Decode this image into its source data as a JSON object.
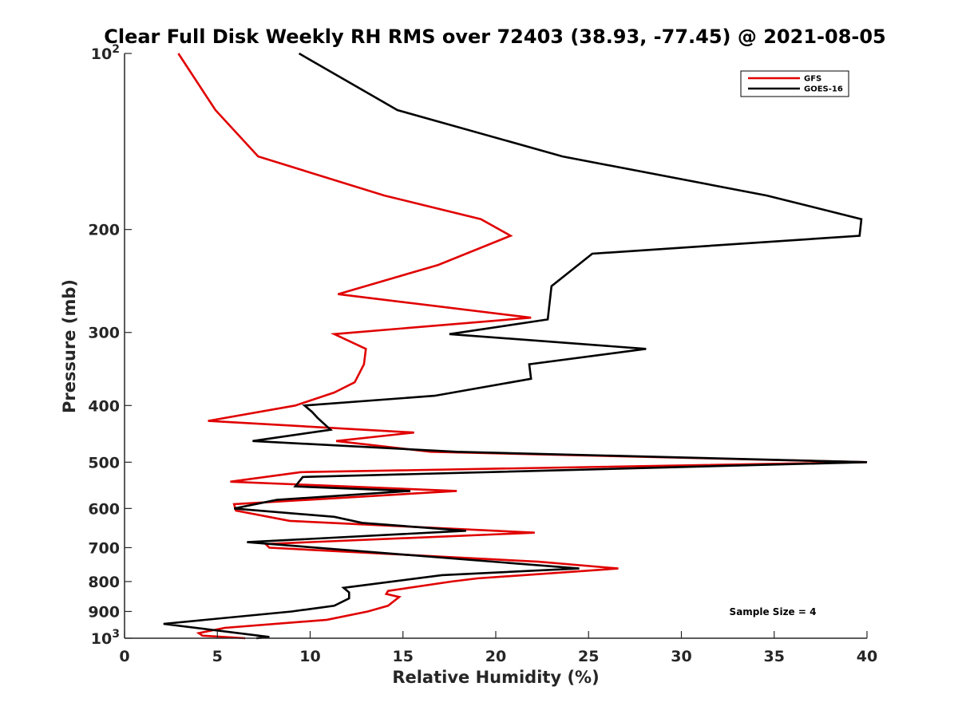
{
  "chart_data": {
    "type": "line",
    "title": "Clear Full Disk Weekly RH RMS over 72403 (38.93, -77.45) @ 2021-08-05",
    "xlabel": "Relative Humidity (%)",
    "ylabel": "Pressure (mb)",
    "xlim": [
      0,
      40
    ],
    "ylim": [
      100,
      1000
    ],
    "y_scale": "log",
    "y_reversed": true,
    "grid": false,
    "legend_position": "top-right",
    "x_ticks": [
      "0",
      "5",
      "10",
      "15",
      "20",
      "25",
      "30",
      "35",
      "40"
    ],
    "y_ticks": [
      {
        "value": 100,
        "base": "10",
        "exp": "2"
      },
      {
        "value": 200,
        "label": "200"
      },
      {
        "value": 300,
        "label": "300"
      },
      {
        "value": 400,
        "label": "400"
      },
      {
        "value": 500,
        "label": "500"
      },
      {
        "value": 600,
        "label": "600"
      },
      {
        "value": 700,
        "label": "700"
      },
      {
        "value": 800,
        "label": "800"
      },
      {
        "value": 900,
        "label": "900"
      },
      {
        "value": 1000,
        "base": "10",
        "exp": "3"
      }
    ],
    "annotation": "Sample Size = 4",
    "series": [
      {
        "name": "GFS",
        "color": "#e00000",
        "points": [
          [
            2.9,
            100
          ],
          [
            4.9,
            125
          ],
          [
            7.2,
            150
          ],
          [
            14.0,
            175
          ],
          [
            19.2,
            192
          ],
          [
            20.8,
            205
          ],
          [
            16.9,
            230
          ],
          [
            11.5,
            258
          ],
          [
            21.9,
            283
          ],
          [
            11.3,
            302
          ],
          [
            13.0,
            320
          ],
          [
            12.9,
            340
          ],
          [
            12.4,
            365
          ],
          [
            11.3,
            380
          ],
          [
            9.2,
            400
          ],
          [
            4.5,
            425
          ],
          [
            15.6,
            445
          ],
          [
            11.4,
            460
          ],
          [
            16.5,
            480
          ],
          [
            40.0,
            500
          ],
          [
            9.5,
            520
          ],
          [
            5.7,
            540
          ],
          [
            17.9,
            560
          ],
          [
            5.9,
            590
          ],
          [
            6.0,
            605
          ],
          [
            8.9,
            630
          ],
          [
            22.1,
            660
          ],
          [
            7.6,
            690
          ],
          [
            7.8,
            700
          ],
          [
            22.3,
            740
          ],
          [
            26.6,
            760
          ],
          [
            19.0,
            790
          ],
          [
            17.6,
            800
          ],
          [
            14.2,
            830
          ],
          [
            14.1,
            840
          ],
          [
            14.8,
            850
          ],
          [
            14.2,
            880
          ],
          [
            13.1,
            900
          ],
          [
            10.9,
            930
          ],
          [
            5.4,
            960
          ],
          [
            4.0,
            980
          ],
          [
            4.2,
            990
          ],
          [
            6.5,
            1000
          ]
        ]
      },
      {
        "name": "GOES-16",
        "color": "#000000",
        "points": [
          [
            9.4,
            100
          ],
          [
            14.7,
            125
          ],
          [
            23.6,
            150
          ],
          [
            34.6,
            175
          ],
          [
            39.7,
            192
          ],
          [
            39.6,
            205
          ],
          [
            25.2,
            220
          ],
          [
            23.0,
            250
          ],
          [
            22.8,
            285
          ],
          [
            17.5,
            302
          ],
          [
            28.1,
            320
          ],
          [
            21.8,
            340
          ],
          [
            21.9,
            360
          ],
          [
            16.7,
            385
          ],
          [
            9.7,
            400
          ],
          [
            10.1,
            410
          ],
          [
            10.4,
            420
          ],
          [
            11.1,
            440
          ],
          [
            6.9,
            460
          ],
          [
            17.9,
            480
          ],
          [
            40.0,
            500
          ],
          [
            9.6,
            530
          ],
          [
            9.2,
            550
          ],
          [
            15.4,
            560
          ],
          [
            8.2,
            580
          ],
          [
            5.9,
            600
          ],
          [
            11.3,
            620
          ],
          [
            12.8,
            635
          ],
          [
            18.4,
            655
          ],
          [
            6.6,
            685
          ],
          [
            24.5,
            760
          ],
          [
            17.1,
            780
          ],
          [
            11.8,
            820
          ],
          [
            12.1,
            835
          ],
          [
            12.1,
            855
          ],
          [
            11.3,
            880
          ],
          [
            9.0,
            900
          ],
          [
            2.1,
            945
          ],
          [
            7.8,
            995
          ],
          [
            7.1,
            1000
          ]
        ]
      }
    ]
  }
}
